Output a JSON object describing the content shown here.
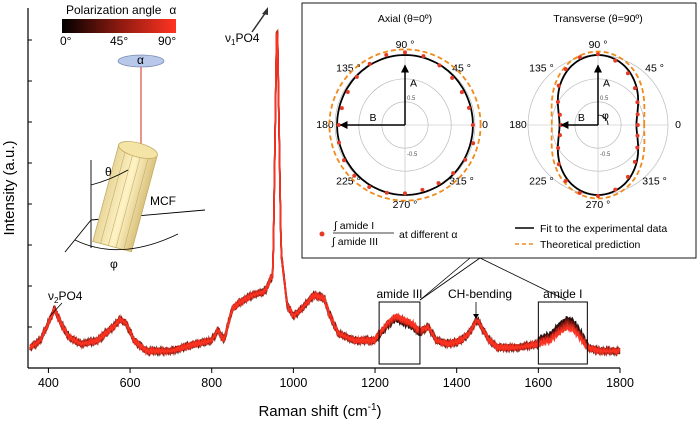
{
  "chart_data": {
    "type": "line",
    "xlabel": "Raman shift (cm",
    "xlabel_sup": "-1",
    "xlabel_close": ")",
    "ylabel": "Intensity (a.u.)",
    "xlim": [
      350,
      1800
    ],
    "ylim": [
      0,
      1
    ],
    "x_ticks": [
      400,
      600,
      800,
      1000,
      1200,
      1400,
      1600,
      1800
    ],
    "series_count": 8,
    "peaks": [
      {
        "x": 415,
        "label": "ν2PO4"
      },
      {
        "x": 960,
        "label": "ν1PO4"
      },
      {
        "x": 1450,
        "label": "CH-bending"
      }
    ],
    "spectrum_keypoints": {
      "x": [
        355,
        380,
        400,
        415,
        430,
        450,
        480,
        520,
        560,
        575,
        590,
        610,
        640,
        700,
        760,
        800,
        815,
        830,
        850,
        870,
        900,
        930,
        950,
        960,
        970,
        985,
        1000,
        1020,
        1050,
        1075,
        1090,
        1110,
        1150,
        1200,
        1230,
        1250,
        1270,
        1290,
        1310,
        1330,
        1350,
        1380,
        1410,
        1430,
        1450,
        1465,
        1480,
        1500,
        1550,
        1600,
        1630,
        1650,
        1670,
        1685,
        1700,
        1720,
        1750,
        1800
      ],
      "y": [
        0.03,
        0.05,
        0.1,
        0.14,
        0.1,
        0.06,
        0.04,
        0.05,
        0.09,
        0.11,
        0.1,
        0.05,
        0.02,
        0.02,
        0.04,
        0.05,
        0.08,
        0.05,
        0.14,
        0.16,
        0.18,
        0.19,
        0.24,
        1.0,
        0.3,
        0.15,
        0.12,
        0.14,
        0.18,
        0.17,
        0.12,
        0.07,
        0.05,
        0.05,
        0.09,
        0.11,
        0.1,
        0.09,
        0.07,
        0.09,
        0.05,
        0.04,
        0.05,
        0.07,
        0.11,
        0.08,
        0.05,
        0.03,
        0.03,
        0.04,
        0.05,
        0.07,
        0.085,
        0.08,
        0.06,
        0.03,
        0.02,
        0.02
      ]
    },
    "region_labels": [
      {
        "label": "amide III",
        "x_start": 1210,
        "x_end": 1310
      },
      {
        "label": "amide I",
        "x_start": 1600,
        "x_end": 1720
      }
    ],
    "colorbar": {
      "title": "Polarization angle",
      "symbol": "α",
      "ticks": [
        "0°",
        "45°",
        "90°"
      ],
      "color_start": "#000000",
      "color_mid": "#8b1a10",
      "color_end": "#ff3322"
    },
    "schematic": {
      "alpha": "α",
      "theta": "θ",
      "phi": "φ",
      "fiber_label": "MCF"
    },
    "insets": [
      {
        "title": "Axial (θ=0º)",
        "label_A": "A",
        "label_B": "B",
        "angle_labels": [
          "90 °",
          "45 °",
          "0",
          "315 °",
          "270 °",
          "225 °",
          "180",
          "135 °"
        ],
        "ring_labels": [
          "0.5",
          "-0.5"
        ],
        "fit_radius": [
          1.0,
          0.98,
          0.97,
          0.98,
          1.0,
          0.98,
          0.97,
          0.98
        ],
        "theory_radius": [
          1.08,
          1.08,
          1.08,
          1.08,
          1.08,
          1.08,
          1.08,
          1.08
        ]
      },
      {
        "title": "Transverse (θ=90º)",
        "label_A": "A",
        "label_B": "B",
        "label_phi": "φ",
        "angle_labels": [
          "90 °",
          "45 °",
          "0",
          "315 °",
          "270 °",
          "225 °",
          "180",
          "135 °"
        ],
        "ring_labels": [
          "0.5",
          "-0.5"
        ],
        "fit_radius": [
          1.0,
          0.78,
          0.55,
          0.78,
          1.0,
          0.78,
          0.55,
          0.78
        ],
        "theory_radius": [
          1.05,
          0.85,
          0.66,
          0.85,
          1.05,
          0.85,
          0.66,
          0.85
        ]
      }
    ],
    "inset_legend": {
      "marker_label_num": "∫ amide I",
      "marker_label_den": "∫ amide III",
      "marker_label_suffix": "at different  α",
      "fit_label": "Fit to the experimental data",
      "theory_label": "Theoretical prediction",
      "marker_color": "#e33b26",
      "fit_color": "#000000",
      "theory_color": "#f08a1c"
    }
  }
}
